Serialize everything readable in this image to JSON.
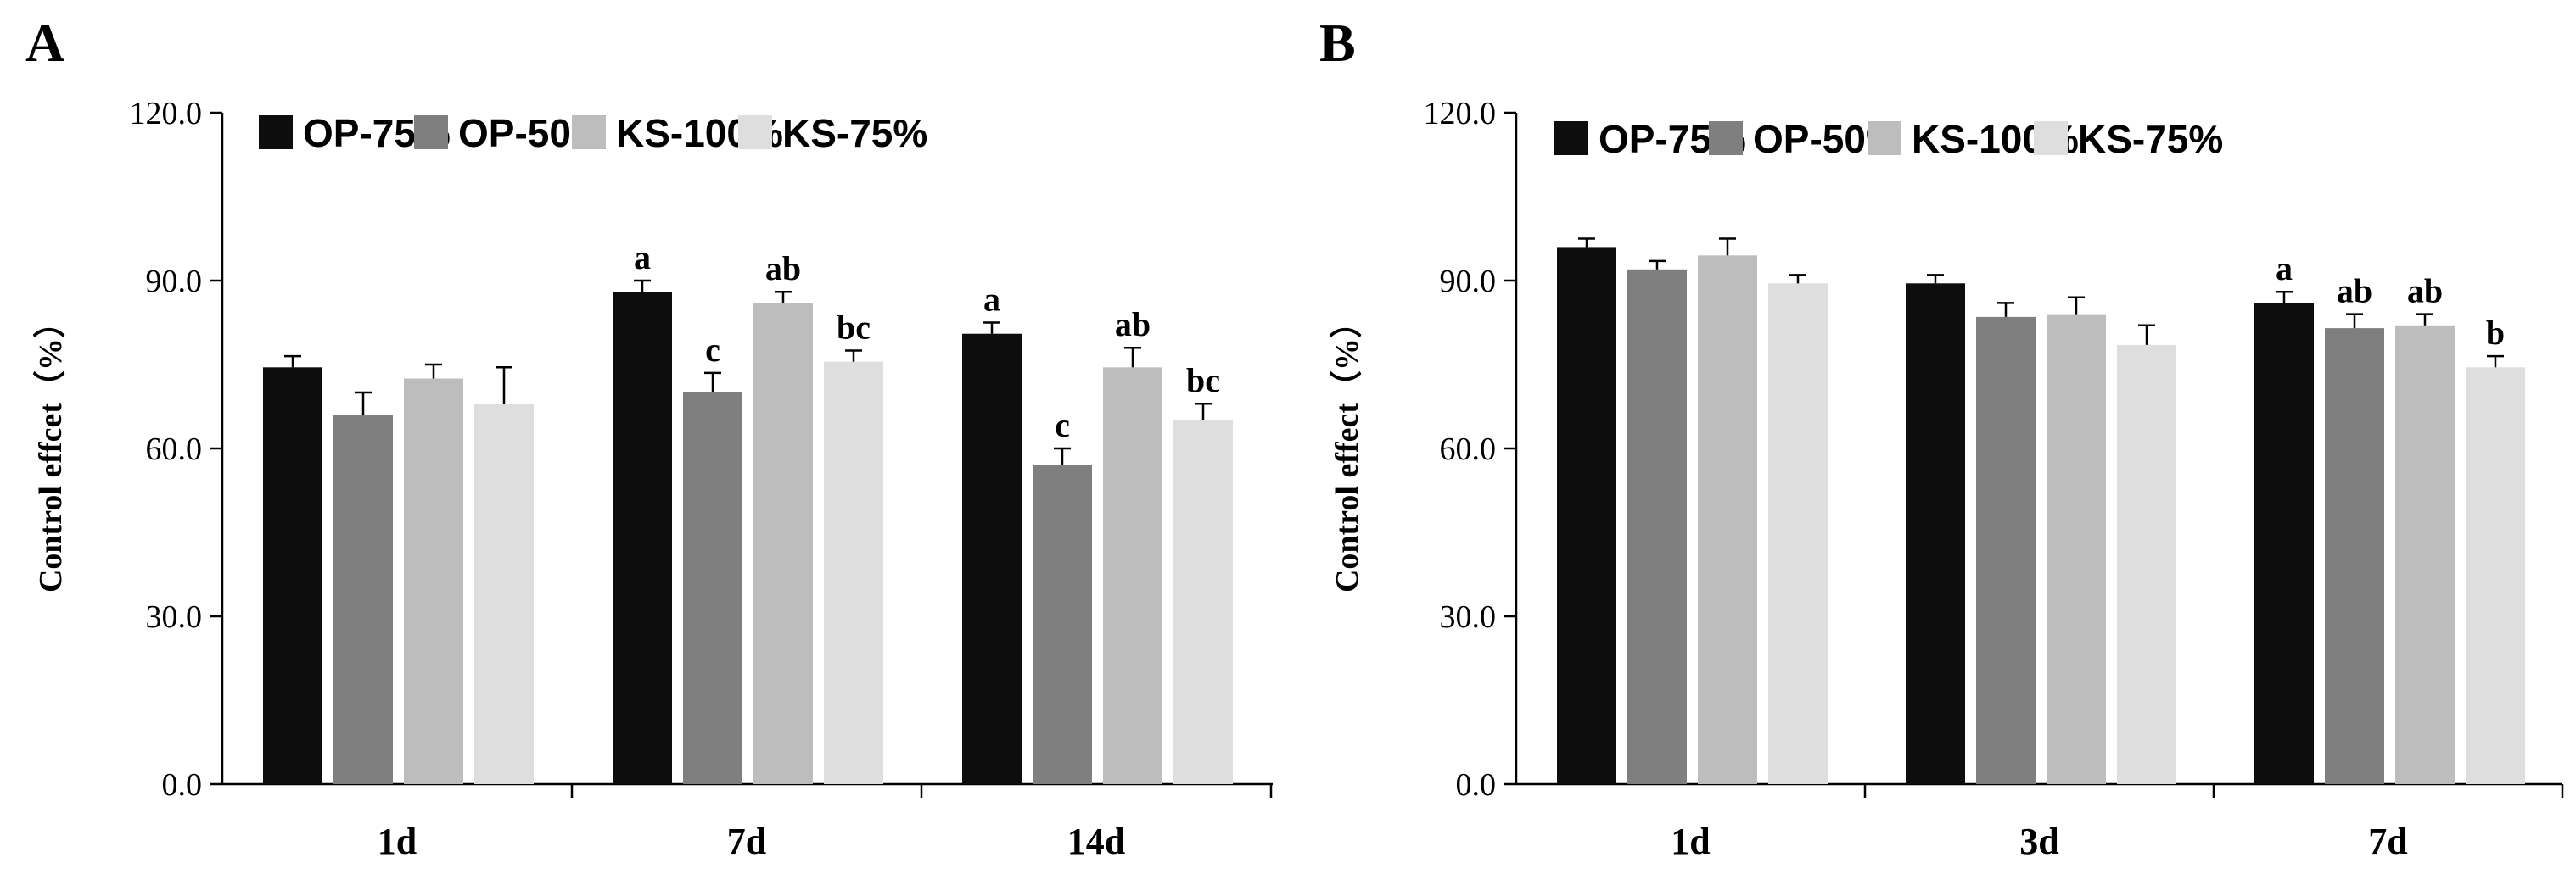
{
  "chart_data": [
    {
      "panel": "A",
      "type": "bar",
      "ylabel": "Control effcet（%）",
      "ylim": [
        0,
        120
      ],
      "yticks": [
        "0.0",
        "30.0",
        "60.0",
        "90.0",
        "120.0"
      ],
      "categories": [
        "1d",
        "7d",
        "14d"
      ],
      "legend": "top",
      "series": [
        {
          "name": "OP-75%",
          "color": "#0d0d0d",
          "values": [
            74.5,
            88.0,
            80.5
          ],
          "errors": [
            2.0,
            2.0,
            2.0
          ],
          "labels": [
            "",
            "a",
            "a"
          ]
        },
        {
          "name": "OP-50%",
          "color": "#7f7f7f",
          "values": [
            66.0,
            70.0,
            57.0
          ],
          "errors": [
            4.0,
            3.5,
            3.0
          ],
          "labels": [
            "",
            "c",
            "c"
          ]
        },
        {
          "name": "KS-100%",
          "color": "#bdbdbd",
          "values": [
            72.5,
            86.0,
            74.5
          ],
          "errors": [
            2.5,
            2.0,
            3.5
          ],
          "labels": [
            "",
            "ab",
            "ab"
          ]
        },
        {
          "name": "KS-75%",
          "color": "#dedede",
          "values": [
            68.0,
            75.5,
            65.0
          ],
          "errors": [
            6.5,
            2.0,
            3.0
          ],
          "labels": [
            "",
            "bc",
            "bc"
          ]
        }
      ]
    },
    {
      "panel": "B",
      "type": "bar",
      "ylabel": "Control effect（%）",
      "ylim": [
        0,
        120
      ],
      "yticks": [
        "0.0",
        "30.0",
        "60.0",
        "90.0",
        "120.0"
      ],
      "categories": [
        "1d",
        "3d",
        "7d"
      ],
      "legend": "top",
      "series": [
        {
          "name": "OP-75%",
          "color": "#0d0d0d",
          "values": [
            96.0,
            89.5,
            86.0
          ],
          "errors": [
            1.5,
            1.5,
            2.0
          ],
          "labels": [
            "",
            "",
            "a"
          ]
        },
        {
          "name": "OP-50%",
          "color": "#7f7f7f",
          "values": [
            92.0,
            83.5,
            81.5
          ],
          "errors": [
            1.5,
            2.5,
            2.5
          ],
          "labels": [
            "",
            "",
            "ab"
          ]
        },
        {
          "name": "KS-100%",
          "color": "#bdbdbd",
          "values": [
            94.5,
            84.0,
            82.0
          ],
          "errors": [
            3.0,
            3.0,
            2.0
          ],
          "labels": [
            "",
            "",
            "ab"
          ]
        },
        {
          "name": "KS-75%",
          "color": "#dedede",
          "values": [
            89.5,
            78.5,
            74.5
          ],
          "errors": [
            1.5,
            3.5,
            2.0
          ],
          "labels": [
            "",
            "",
            "b"
          ]
        }
      ]
    }
  ]
}
